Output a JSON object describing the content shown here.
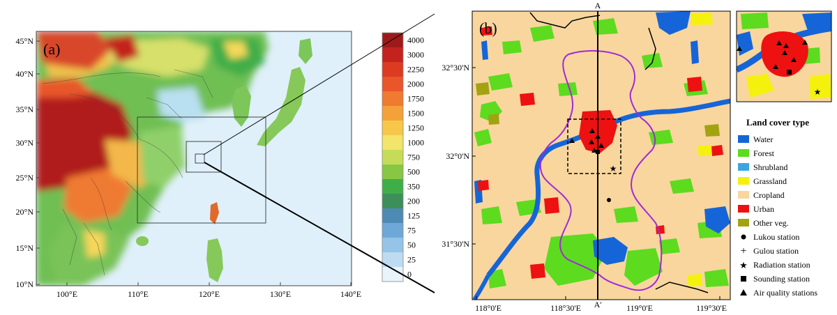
{
  "panel_a": {
    "label": "(a)",
    "lat_ticks": [
      "45°N",
      "40°N",
      "35°N",
      "30°N",
      "25°N",
      "20°N",
      "15°N",
      "10°N"
    ],
    "lon_ticks": [
      "100°E",
      "110°E",
      "120°E",
      "130°E",
      "140°E"
    ]
  },
  "colorbar": {
    "levels": [
      "4000",
      "3000",
      "2250",
      "2000",
      "1750",
      "1500",
      "1250",
      "1000",
      "750",
      "500",
      "350",
      "200",
      "125",
      "75",
      "50",
      "25",
      "0"
    ],
    "colors": [
      "#9e1a1a",
      "#c4221f",
      "#dd3a22",
      "#e9562a",
      "#f07a2f",
      "#f5a13a",
      "#f8c74a",
      "#f3e46a",
      "#c6dc58",
      "#88c743",
      "#3fae49",
      "#3d8f59",
      "#4f8ab4",
      "#6ea8d9",
      "#95c4e8",
      "#bddcf2",
      "#e8f3fb"
    ]
  },
  "panel_b": {
    "label": "(b)",
    "section_top": "A",
    "section_bottom": "A'",
    "lat_ticks": [
      "32°30'N",
      "32°0'N",
      "31°30'N"
    ],
    "lon_ticks": [
      "118°0'E",
      "118°30'E",
      "119°0'E",
      "119°30'E"
    ]
  },
  "legend": {
    "title": "Land cover type",
    "classes": [
      {
        "label": "Water",
        "color": "#1565d8"
      },
      {
        "label": "Forest",
        "color": "#5ddb1f"
      },
      {
        "label": "Shrubland",
        "color": "#3aa6e0"
      },
      {
        "label": "Grassland",
        "color": "#f4f20c"
      },
      {
        "label": "Cropland",
        "color": "#f8d69e"
      },
      {
        "label": "Urban",
        "color": "#ee1111"
      },
      {
        "label": "Other veg.",
        "color": "#a3a312"
      }
    ],
    "stations": [
      {
        "label": "Lukou station",
        "symbol": "circle"
      },
      {
        "label": "Gulou station",
        "symbol": "plus"
      },
      {
        "label": "Radiation station",
        "symbol": "star"
      },
      {
        "label": "Sounding station",
        "symbol": "square"
      },
      {
        "label": "Air quality stations",
        "symbol": "triangle"
      }
    ]
  }
}
